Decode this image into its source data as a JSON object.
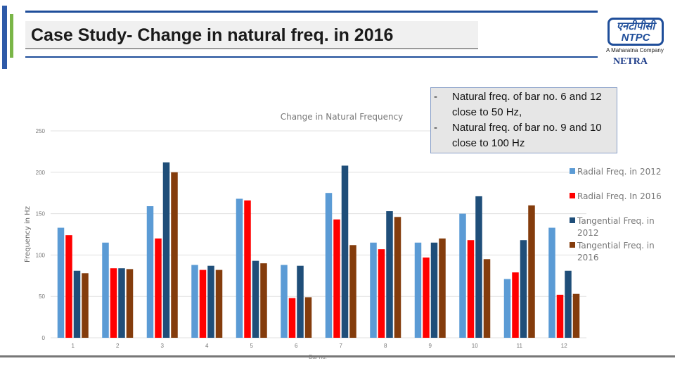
{
  "slide": {
    "title": "Case Study- Change in natural freq. in 2016",
    "logo_text": "एनटीपीसी NTPC",
    "tagline": "A Maharatna Company",
    "brand": "NETRA"
  },
  "notes": [
    {
      "bullet": "-",
      "text": "Natural freq. of bar no. 6 and 12 close to 50 Hz,"
    },
    {
      "bullet": "-",
      "text": "Natural freq. of bar no. 9 and 10 close to 100 Hz"
    }
  ],
  "chart_data": {
    "type": "bar",
    "title": "Change in Natural Frequency",
    "xlabel": "Bar no.",
    "ylabel": "Frequency in Hz",
    "ylim": [
      0,
      250
    ],
    "yticks": [
      0,
      50,
      100,
      150,
      200,
      250
    ],
    "grid": true,
    "legend": "right",
    "categories": [
      "1",
      "2",
      "3",
      "4",
      "5",
      "6",
      "7",
      "8",
      "9",
      "10",
      "11",
      "12"
    ],
    "series": [
      {
        "name": "Radial Freq. in 2012",
        "color": "#5b9bd5",
        "values": [
          133,
          115,
          159,
          88,
          168,
          88,
          175,
          115,
          115,
          150,
          71,
          133
        ]
      },
      {
        "name": "Radial Freq. In 2016",
        "color": "#ff0000",
        "values": [
          124,
          84,
          120,
          82,
          166,
          48,
          143,
          107,
          97,
          118,
          79,
          52
        ]
      },
      {
        "name": "Tangential Freq. in 2012",
        "color": "#1f4e79",
        "values": [
          81,
          84,
          212,
          87,
          93,
          87,
          208,
          153,
          115,
          171,
          118,
          81
        ]
      },
      {
        "name": "Tangential Freq. in 2016",
        "color": "#843c0c",
        "values": [
          78,
          83,
          200,
          82,
          90,
          49,
          112,
          146,
          120,
          95,
          160,
          53
        ]
      }
    ]
  }
}
